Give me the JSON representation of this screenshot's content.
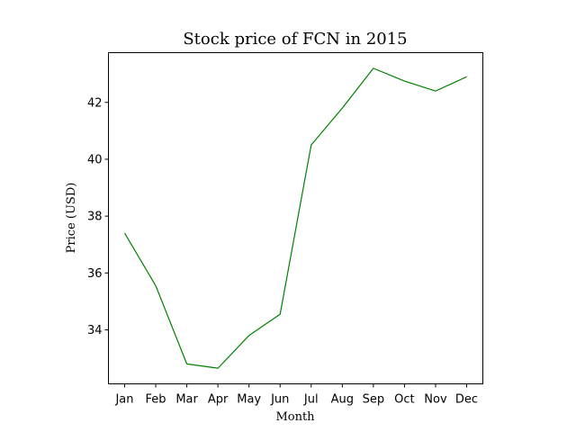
{
  "chart_data": {
    "type": "line",
    "title": "Stock price of FCN in 2015",
    "xlabel": "Month",
    "ylabel": "Price (USD)",
    "categories": [
      "Jan",
      "Feb",
      "Mar",
      "Apr",
      "May",
      "Jun",
      "Jul",
      "Aug",
      "Sep",
      "Oct",
      "Nov",
      "Dec"
    ],
    "series": [
      {
        "values": [
          37.4,
          35.55,
          32.8,
          32.65,
          33.8,
          34.55,
          40.5,
          41.8,
          43.2,
          42.75,
          42.4,
          42.9
        ],
        "color": "#008000"
      }
    ],
    "ylim": [
      32.1,
      43.75
    ],
    "yticks": [
      34,
      36,
      38,
      40,
      42
    ],
    "grid": false,
    "legend": "none"
  }
}
